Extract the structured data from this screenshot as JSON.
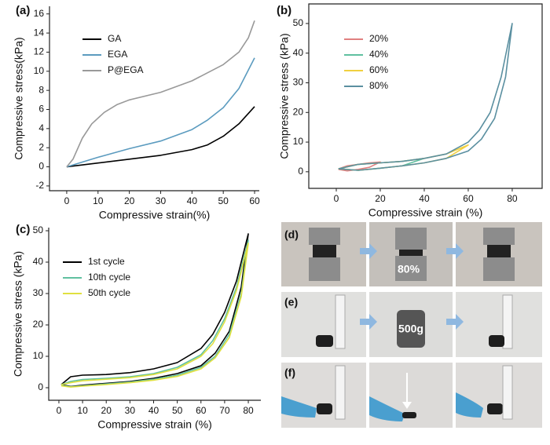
{
  "chart_data": [
    {
      "type": "line",
      "panel_label": "(a)",
      "x_label": "Compressive strain(%)",
      "y_label": "Compressive stress(kPa)",
      "xlim": [
        -5.5,
        61.5
      ],
      "ylim": [
        -2.5,
        16.8
      ],
      "xticks": [
        0,
        10,
        20,
        30,
        40,
        50,
        60
      ],
      "yticks": [
        -2,
        0,
        2,
        4,
        6,
        8,
        10,
        12,
        14,
        16
      ],
      "legend": "upper left",
      "series": [
        {
          "name": "GA",
          "color": "#000000",
          "x": [
            0,
            10,
            20,
            30,
            40,
            45,
            50,
            55,
            60
          ],
          "values": [
            0,
            0.4,
            0.8,
            1.2,
            1.8,
            2.3,
            3.2,
            4.5,
            6.3
          ]
        },
        {
          "name": "EGA",
          "color": "#5b9bbf",
          "x": [
            0,
            5,
            10,
            20,
            30,
            40,
            45,
            50,
            55,
            60
          ],
          "values": [
            0,
            0.5,
            1,
            1.9,
            2.7,
            3.9,
            4.9,
            6.2,
            8.2,
            11.4
          ]
        },
        {
          "name": "P@EGA",
          "color": "#999999",
          "x": [
            0,
            2,
            5,
            8,
            12,
            16,
            20,
            30,
            40,
            50,
            55,
            58,
            60
          ],
          "values": [
            0,
            0.8,
            3,
            4.5,
            5.7,
            6.5,
            7,
            7.8,
            9,
            10.7,
            12,
            13.5,
            15.3
          ]
        }
      ]
    },
    {
      "type": "line",
      "panel_label": "(b)",
      "x_label": "Compressive strain (%)",
      "y_label": "Compressive stress (kPa)",
      "xlim": [
        -12.5,
        93.6
      ],
      "ylim": [
        -5.6,
        56.6
      ],
      "xticks": [
        0,
        20,
        40,
        60,
        80
      ],
      "yticks": [
        0,
        10,
        20,
        30,
        40,
        50
      ],
      "legend": "upper left",
      "series": [
        {
          "name": "20%",
          "color": "#e08080",
          "x": [
            1,
            5,
            10,
            15,
            20,
            15,
            10,
            5,
            1
          ],
          "values": [
            1,
            2,
            2.5,
            3,
            3.3,
            1.5,
            0.8,
            0.3,
            0.8
          ]
        },
        {
          "name": "40%",
          "color": "#60c0a0",
          "x": [
            1,
            10,
            20,
            30,
            40,
            30,
            20,
            10,
            1
          ],
          "values": [
            1,
            2.5,
            3,
            3.5,
            4.5,
            2,
            1.2,
            0.5,
            1
          ]
        },
        {
          "name": "60%",
          "color": "#f0d040",
          "x": [
            1,
            10,
            20,
            30,
            40,
            50,
            60,
            50,
            40,
            30,
            20,
            10,
            1
          ],
          "values": [
            1,
            2.5,
            3,
            3.5,
            4.5,
            6,
            9,
            4.5,
            3,
            2,
            1.2,
            0.5,
            1
          ]
        },
        {
          "name": "80%",
          "color": "#5a8fa0",
          "x": [
            1,
            10,
            20,
            30,
            40,
            50,
            60,
            65,
            70,
            75,
            80,
            77,
            72,
            66,
            60,
            50,
            40,
            30,
            20,
            10,
            1
          ],
          "values": [
            1,
            2.5,
            3,
            3.5,
            4.5,
            6,
            10,
            14,
            20,
            32,
            50,
            32,
            18,
            11,
            7,
            4.5,
            3,
            2,
            1.2,
            0.5,
            1
          ]
        }
      ]
    },
    {
      "type": "line",
      "panel_label": "(c)",
      "x_label": "Compressive strain (%)",
      "y_label": "Compressive stress (kPa)",
      "xlim": [
        -4.3,
        85.3
      ],
      "ylim": [
        -4,
        51
      ],
      "xticks": [
        0,
        10,
        20,
        30,
        40,
        50,
        60,
        70,
        80
      ],
      "yticks": [
        0,
        10,
        20,
        30,
        40,
        50
      ],
      "legend": "upper left",
      "series": [
        {
          "name": "1st cycle",
          "color": "#000000",
          "x": [
            1,
            5,
            10,
            20,
            30,
            40,
            50,
            60,
            65,
            70,
            75,
            80,
            77,
            72,
            66,
            60,
            50,
            40,
            30,
            20,
            10,
            5,
            1
          ],
          "values": [
            1,
            3.5,
            4,
            4.2,
            4.8,
            6,
            8,
            12.5,
            17,
            24,
            34,
            49,
            32,
            18,
            11,
            7,
            4.5,
            3,
            2,
            1.4,
            0.8,
            0.4,
            1
          ]
        },
        {
          "name": "10th cycle",
          "color": "#60c0a0",
          "x": [
            1,
            5,
            10,
            20,
            30,
            40,
            50,
            60,
            65,
            70,
            75,
            80,
            77,
            72,
            66,
            60,
            50,
            40,
            30,
            20,
            10,
            5,
            1
          ],
          "values": [
            1,
            2,
            2.6,
            3,
            3.5,
            4.5,
            6.5,
            10.5,
            15,
            22,
            32,
            47,
            30,
            17,
            10,
            6.5,
            4,
            2.7,
            1.8,
            1.2,
            0.6,
            0.3,
            0.8
          ]
        },
        {
          "name": "50th cycle",
          "color": "#e0e040",
          "x": [
            1,
            5,
            10,
            20,
            30,
            40,
            50,
            60,
            65,
            70,
            75,
            80,
            77,
            72,
            66,
            60,
            50,
            40,
            30,
            20,
            10,
            5,
            1
          ],
          "values": [
            1,
            1.6,
            2.2,
            2.7,
            3.2,
            4.2,
            6,
            10,
            14,
            21,
            31,
            46,
            29,
            16,
            9.5,
            6,
            3.6,
            2.4,
            1.6,
            1,
            0.5,
            0.2,
            0.6
          ]
        }
      ]
    }
  ],
  "photo_panels": {
    "labels": [
      "(d)",
      "(e)",
      "(f)"
    ],
    "annotations": [
      "80%",
      "500g"
    ]
  }
}
